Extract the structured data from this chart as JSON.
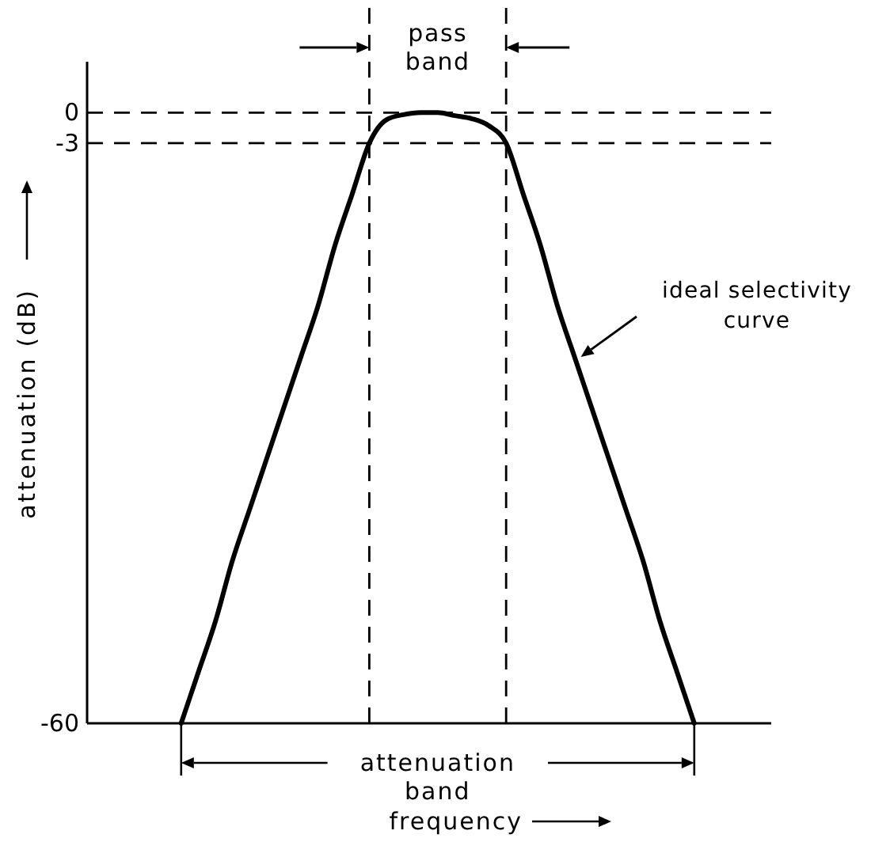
{
  "chart_data": {
    "type": "line",
    "xlabel": "frequency",
    "ylabel": "attenuation (dB)",
    "categories": [
      null,
      null,
      null,
      null,
      null,
      null,
      null,
      null,
      null,
      null,
      null,
      null,
      null,
      null,
      null,
      null,
      null,
      null,
      null,
      null,
      null,
      null,
      null,
      null,
      null,
      null,
      null,
      null,
      null,
      null,
      null,
      null,
      null,
      null,
      null,
      null,
      null,
      null,
      null,
      null
    ],
    "series": [
      {
        "color": "#000000",
        "values": [
          null,
          null,
          null,
          null,
          null,
          -60,
          -55,
          -50,
          -44,
          -39,
          -34,
          -29,
          -24,
          -19,
          -13,
          -8,
          -3,
          -0.7,
          -0.2,
          0,
          0,
          -0.3,
          -0.6,
          -1.3,
          -3,
          -8,
          -13,
          -19,
          -24,
          -29,
          -34,
          -39,
          -44,
          -50,
          -55,
          -60,
          null,
          null,
          null,
          null
        ]
      }
    ],
    "ylim": [
      -60,
      5
    ],
    "yticks": [
      0,
      -3,
      -60
    ],
    "tick_labels": "y",
    "line_style": "solid",
    "ref_lines": [
      {
        "axis": "y",
        "value": 0,
        "line_style": "dashed"
      },
      {
        "axis": "y",
        "value": -3,
        "line_style": "dashed"
      }
    ],
    "annotations": [
      "pass band",
      "attenuation band",
      "ideal selectivity curve"
    ]
  }
}
